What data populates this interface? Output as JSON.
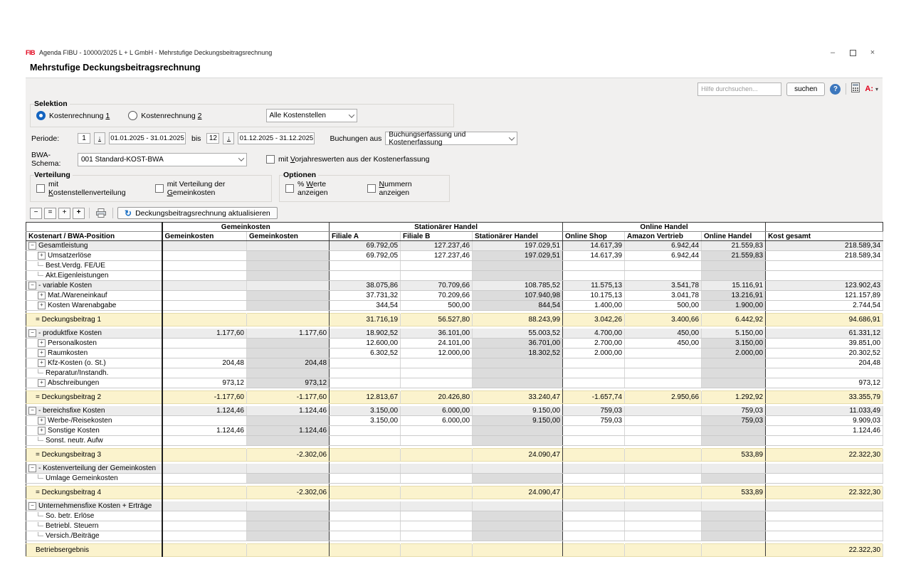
{
  "window": {
    "logo": "FIB",
    "title": "Agenda FIBU - 10000/2025 L + L GmbH - Mehrstufige Deckungsbeitragsrechnung"
  },
  "icons": {
    "minimize": "–",
    "close": "×",
    "help": "?",
    "caret": "▾",
    "refresh": "↻",
    "collapse": "−",
    "collapse_all": "=",
    "expand": "+",
    "expand_all": "+",
    "tree_collapse": "−",
    "tree_expand": "+",
    "arrow_down": "↓"
  },
  "page": {
    "heading": "Mehrstufige Deckungsbeitragsrechnung"
  },
  "help": {
    "search_placeholder": "Hilfe durchsuchen...",
    "search_button": "suchen",
    "a_menu": "A:"
  },
  "selektion": {
    "legend": "Selektion",
    "radio1": {
      "pre": "Kostenrechnung ",
      "key": "1",
      "post": ""
    },
    "radio2": {
      "pre": "Kostenrechnung ",
      "key": "2",
      "post": ""
    },
    "kostenstellen": "Alle Kostenstellen"
  },
  "periode": {
    "label": "Periode:",
    "from_value": "1",
    "from_range": "01.01.2025 - 31.01.2025",
    "bis": "bis",
    "to_value": "12",
    "to_range": "01.12.2025 - 31.12.2025",
    "buchungen_label": "Buchungen aus",
    "buchungen_value": "Buchungserfassung und Kostenerfassung"
  },
  "bwa": {
    "label": "BWA-Schema:",
    "value": "001 Standard-KOST-BWA",
    "vorjahr": {
      "pre": "mit ",
      "key": "V",
      "post": "orjahreswerten aus der Kostenerfassung"
    }
  },
  "verteilung": {
    "legend": "Verteilung",
    "cb1": {
      "pre": "mit ",
      "key": "K",
      "post": "ostenstellenverteilung"
    },
    "cb2": {
      "pre": "mit Verteilung der ",
      "key": "G",
      "post": "emeinkosten"
    }
  },
  "optionen": {
    "legend": "Optionen",
    "cb1": {
      "pre": "% ",
      "key": "W",
      "post": "erte anzeigen"
    },
    "cb2": {
      "pre": "",
      "key": "N",
      "post": "ummern anzeigen"
    }
  },
  "toolbar": {
    "refresh_label": "Deckungsbeitragsrechnung aktualisieren"
  },
  "table": {
    "group_headers": [
      {
        "label": "",
        "span": 1
      },
      {
        "label": "Gemeinkosten",
        "span": 2
      },
      {
        "label": "Stationärer Handel",
        "span": 3
      },
      {
        "label": "Online Handel",
        "span": 3
      },
      {
        "label": "",
        "span": 1
      }
    ],
    "columns": [
      "Kostenart / BWA-Position",
      "Gemeinkosten",
      "Gemeinkosten",
      "Filiale A",
      "Filiale B",
      "Stationärer Handel",
      "Online Shop",
      "Amazon Vertrieb",
      "Online Handel",
      "Kost gesamt"
    ],
    "rows": [
      {
        "type": "group",
        "label": "Gesamtleistung",
        "values": [
          "",
          "",
          "69.792,05",
          "127.237,46",
          "197.029,51",
          "14.617,39",
          "6.942,44",
          "21.559,83",
          "218.589,34"
        ]
      },
      {
        "type": "child",
        "label": "Umsatzerlöse",
        "values": [
          "",
          "",
          "69.792,05",
          "127.237,46",
          "197.029,51",
          "14.617,39",
          "6.942,44",
          "21.559,83",
          "218.589,34"
        ]
      },
      {
        "type": "leaf",
        "label": "Best.Verdg. FE/UE",
        "values": [
          "",
          "",
          "",
          "",
          "",
          "",
          "",
          "",
          ""
        ]
      },
      {
        "type": "leaf",
        "label": "Akt.Eigenleistungen",
        "values": [
          "",
          "",
          "",
          "",
          "",
          "",
          "",
          "",
          ""
        ]
      },
      {
        "type": "group",
        "label": "- variable Kosten",
        "values": [
          "",
          "",
          "38.075,86",
          "70.709,66",
          "108.785,52",
          "11.575,13",
          "3.541,78",
          "15.116,91",
          "123.902,43"
        ]
      },
      {
        "type": "child",
        "label": "Mat./Wareneinkauf",
        "values": [
          "",
          "",
          "37.731,32",
          "70.209,66",
          "107.940,98",
          "10.175,13",
          "3.041,78",
          "13.216,91",
          "121.157,89"
        ]
      },
      {
        "type": "child",
        "label": "Kosten Warenabgabe",
        "values": [
          "",
          "",
          "344,54",
          "500,00",
          "844,54",
          "1.400,00",
          "500,00",
          "1.900,00",
          "2.744,54"
        ]
      },
      {
        "type": "spacer"
      },
      {
        "type": "total",
        "label": "= Deckungsbeitrag 1",
        "values": [
          "",
          "",
          "31.716,19",
          "56.527,80",
          "88.243,99",
          "3.042,26",
          "3.400,66",
          "6.442,92",
          "94.686,91"
        ]
      },
      {
        "type": "spacer"
      },
      {
        "type": "group",
        "label": "- produktfixe Kosten",
        "values": [
          "1.177,60",
          "1.177,60",
          "18.902,52",
          "36.101,00",
          "55.003,52",
          "4.700,00",
          "450,00",
          "5.150,00",
          "61.331,12"
        ]
      },
      {
        "type": "child",
        "label": "Personalkosten",
        "values": [
          "",
          "",
          "12.600,00",
          "24.101,00",
          "36.701,00",
          "2.700,00",
          "450,00",
          "3.150,00",
          "39.851,00"
        ]
      },
      {
        "type": "child",
        "label": "Raumkosten",
        "values": [
          "",
          "",
          "6.302,52",
          "12.000,00",
          "18.302,52",
          "2.000,00",
          "",
          "2.000,00",
          "20.302,52"
        ]
      },
      {
        "type": "child",
        "label": "Kfz-Kosten (o. St.)",
        "values": [
          "204,48",
          "204,48",
          "",
          "",
          "",
          "",
          "",
          "",
          "204,48"
        ]
      },
      {
        "type": "leaf",
        "label": "Reparatur/Instandh.",
        "values": [
          "",
          "",
          "",
          "",
          "",
          "",
          "",
          "",
          ""
        ]
      },
      {
        "type": "child",
        "label": "Abschreibungen",
        "values": [
          "973,12",
          "973,12",
          "",
          "",
          "",
          "",
          "",
          "",
          "973,12"
        ]
      },
      {
        "type": "spacer"
      },
      {
        "type": "total",
        "label": "= Deckungsbeitrag 2",
        "values": [
          "-1.177,60",
          "-1.177,60",
          "12.813,67",
          "20.426,80",
          "33.240,47",
          "-1.657,74",
          "2.950,66",
          "1.292,92",
          "33.355,79"
        ]
      },
      {
        "type": "spacer"
      },
      {
        "type": "group",
        "label": "- bereichsfixe Kosten",
        "values": [
          "1.124,46",
          "1.124,46",
          "3.150,00",
          "6.000,00",
          "9.150,00",
          "759,03",
          "",
          "759,03",
          "11.033,49"
        ]
      },
      {
        "type": "child",
        "label": "Werbe-/Reisekosten",
        "values": [
          "",
          "",
          "3.150,00",
          "6.000,00",
          "9.150,00",
          "759,03",
          "",
          "759,03",
          "9.909,03"
        ]
      },
      {
        "type": "child",
        "label": "Sonstige Kosten",
        "values": [
          "1.124,46",
          "1.124,46",
          "",
          "",
          "",
          "",
          "",
          "",
          "1.124,46"
        ]
      },
      {
        "type": "leaf",
        "label": "Sonst. neutr. Aufw",
        "values": [
          "",
          "",
          "",
          "",
          "",
          "",
          "",
          "",
          ""
        ]
      },
      {
        "type": "spacer"
      },
      {
        "type": "total",
        "label": "= Deckungsbeitrag 3",
        "values": [
          "",
          "-2.302,06",
          "",
          "",
          "24.090,47",
          "",
          "",
          "533,89",
          "22.322,30"
        ]
      },
      {
        "type": "spacer"
      },
      {
        "type": "group",
        "label": "- Kostenverteilung der Gemeinkosten",
        "values": [
          "",
          "",
          "",
          "",
          "",
          "",
          "",
          "",
          ""
        ]
      },
      {
        "type": "leaf",
        "label": "Umlage Gemeinkosten",
        "values": [
          "",
          "",
          "",
          "",
          "",
          "",
          "",
          "",
          ""
        ]
      },
      {
        "type": "spacer"
      },
      {
        "type": "total",
        "label": "= Deckungsbeitrag 4",
        "values": [
          "",
          "-2.302,06",
          "",
          "",
          "24.090,47",
          "",
          "",
          "533,89",
          "22.322,30"
        ]
      },
      {
        "type": "spacer"
      },
      {
        "type": "group",
        "label": "Unternehmensfixe Kosten + Erträge",
        "values": [
          "",
          "",
          "",
          "",
          "",
          "",
          "",
          "",
          ""
        ]
      },
      {
        "type": "leaf",
        "label": "So. betr. Erlöse",
        "values": [
          "",
          "",
          "",
          "",
          "",
          "",
          "",
          "",
          ""
        ]
      },
      {
        "type": "leaf",
        "label": "Betriebl. Steuern",
        "values": [
          "",
          "",
          "",
          "",
          "",
          "",
          "",
          "",
          ""
        ]
      },
      {
        "type": "leaf",
        "label": "Versich./Beiträge",
        "values": [
          "",
          "",
          "",
          "",
          "",
          "",
          "",
          "",
          ""
        ]
      },
      {
        "type": "spacer"
      },
      {
        "type": "total",
        "label": "Betriebsergebnis",
        "values": [
          "",
          "",
          "",
          "",
          "",
          "",
          "",
          "",
          "22.322,30"
        ]
      }
    ]
  }
}
